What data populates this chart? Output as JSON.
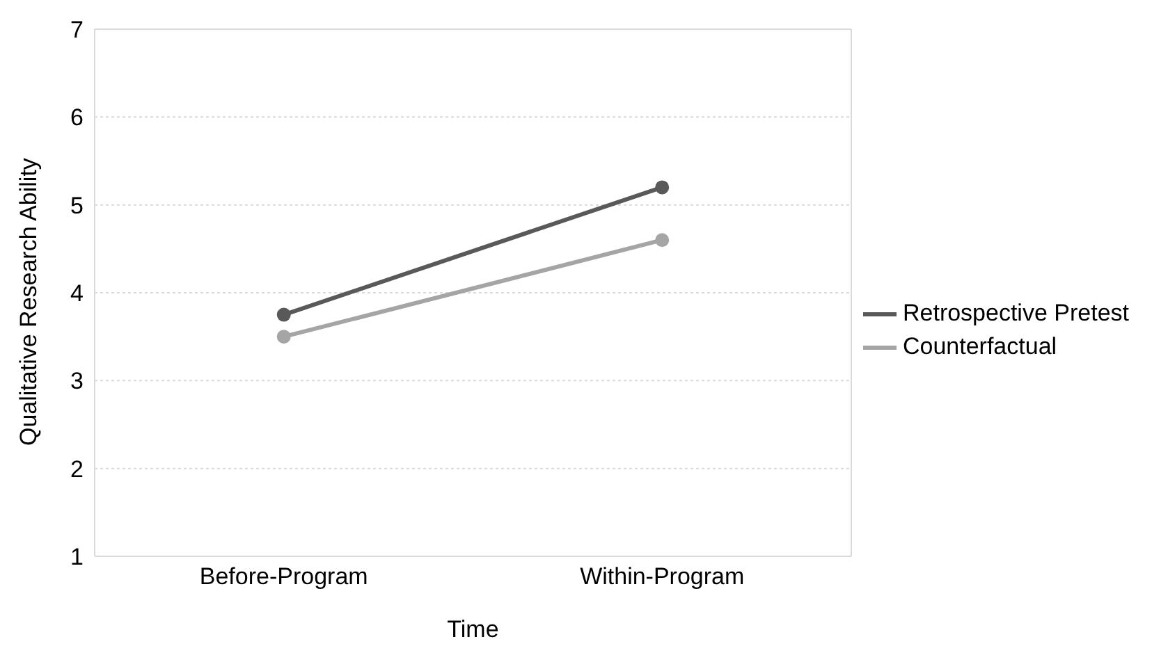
{
  "chart_data": {
    "type": "line",
    "xlabel": "Time",
    "ylabel": "Qualitative Research Ability",
    "categories": [
      "Before-Program",
      "Within-Program"
    ],
    "series": [
      {
        "name": "Retrospective Pretest",
        "color": "#595959",
        "values": [
          3.75,
          5.2
        ]
      },
      {
        "name": "Counterfactual",
        "color": "#a5a5a5",
        "values": [
          3.5,
          4.6
        ]
      }
    ],
    "ylim": [
      1,
      7
    ],
    "yticks": [
      1,
      2,
      3,
      4,
      5,
      6,
      7
    ],
    "grid": "y",
    "legend": "right",
    "marker": "circle",
    "line_style": "solid"
  }
}
